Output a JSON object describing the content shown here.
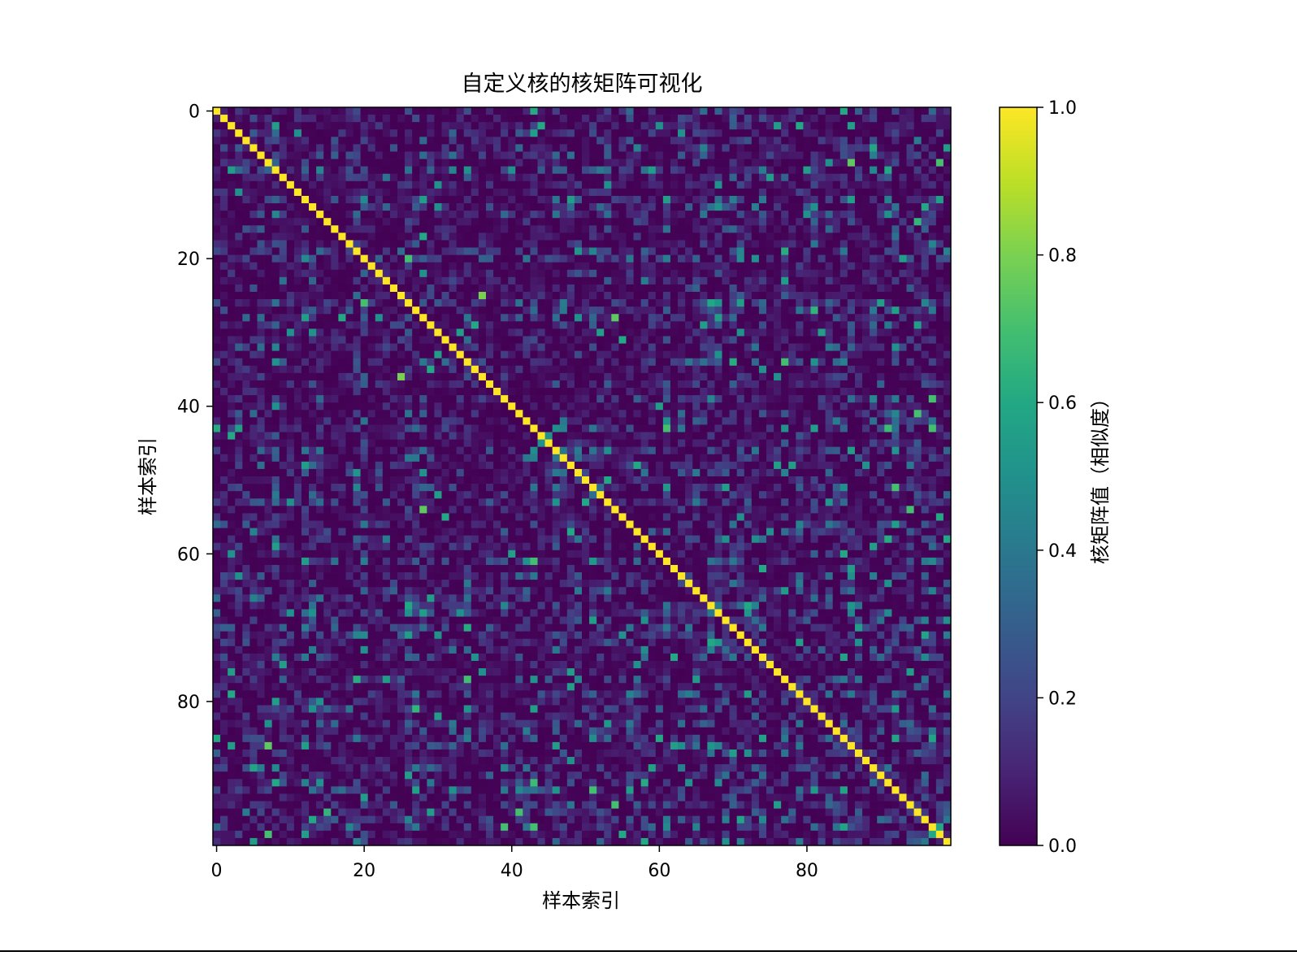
{
  "chart_data": {
    "type": "heatmap",
    "title": "自定义核的核矩阵可视化",
    "xlabel": "样本索引",
    "ylabel": "样本索引",
    "n_samples": 100,
    "x_ticks": [
      0,
      20,
      40,
      60,
      80
    ],
    "y_ticks": [
      0,
      20,
      40,
      60,
      80
    ],
    "x_tick_labels": [
      "0",
      "20",
      "40",
      "60",
      "80"
    ],
    "y_tick_labels": [
      "0",
      "20",
      "40",
      "60",
      "80"
    ],
    "diagonal_value": 1.0,
    "off_diagonal_range": [
      0.0,
      0.8
    ],
    "colormap": "viridis",
    "colorbar": {
      "label": "核矩阵值（相似度）",
      "range": [
        0.0,
        1.0
      ],
      "ticks": [
        0.0,
        0.2,
        0.4,
        0.6,
        0.8,
        1.0
      ],
      "tick_labels": [
        "0.0",
        "0.2",
        "0.4",
        "0.6",
        "0.8",
        "1.0"
      ]
    },
    "bright_pairs": [
      [
        2,
        8,
        0.55
      ],
      [
        2,
        44,
        0.6
      ],
      [
        2,
        76,
        0.55
      ],
      [
        2,
        79,
        0.6
      ],
      [
        3,
        63,
        0.5
      ],
      [
        7,
        86,
        0.75
      ],
      [
        7,
        98,
        0.7
      ],
      [
        8,
        14,
        0.45
      ],
      [
        10,
        30,
        0.5
      ],
      [
        10,
        68,
        0.5
      ],
      [
        12,
        28,
        0.55
      ],
      [
        12,
        61,
        0.55
      ],
      [
        13,
        30,
        0.5
      ],
      [
        14,
        80,
        0.5
      ],
      [
        15,
        95,
        0.65
      ],
      [
        17,
        28,
        0.6
      ],
      [
        20,
        93,
        0.55
      ],
      [
        22,
        28,
        0.5
      ],
      [
        25,
        36,
        0.7
      ],
      [
        27,
        81,
        0.65
      ],
      [
        28,
        49,
        0.5
      ],
      [
        28,
        68,
        0.55
      ],
      [
        29,
        35,
        0.6
      ],
      [
        30,
        71,
        0.5
      ],
      [
        31,
        55,
        0.6
      ],
      [
        33,
        68,
        0.5
      ],
      [
        33,
        30,
        0.55
      ],
      [
        36,
        25,
        0.8
      ],
      [
        39,
        67,
        0.45
      ],
      [
        40,
        8,
        0.5
      ],
      [
        40,
        60,
        0.55
      ],
      [
        41,
        95,
        0.7
      ],
      [
        43,
        3,
        0.55
      ],
      [
        46,
        53,
        0.5
      ],
      [
        46,
        86,
        0.55
      ],
      [
        48,
        76,
        0.55
      ],
      [
        50,
        53,
        0.6
      ],
      [
        52,
        30,
        0.55
      ],
      [
        53,
        10,
        0.5
      ],
      [
        54,
        28,
        0.75
      ],
      [
        54,
        94,
        0.7
      ],
      [
        55,
        98,
        0.6
      ],
      [
        57,
        75,
        0.5
      ],
      [
        58,
        69,
        0.5
      ],
      [
        59,
        8,
        0.55
      ],
      [
        60,
        2,
        0.5
      ],
      [
        62,
        74,
        0.6
      ],
      [
        62,
        86,
        0.55
      ],
      [
        64,
        91,
        0.5
      ],
      [
        66,
        29,
        0.55
      ],
      [
        67,
        72,
        0.6
      ],
      [
        68,
        13,
        0.5
      ],
      [
        69,
        99,
        0.5
      ],
      [
        70,
        87,
        0.55
      ],
      [
        72,
        79,
        0.55
      ],
      [
        74,
        35,
        0.5
      ],
      [
        75,
        9,
        0.55
      ],
      [
        76,
        36,
        0.5
      ],
      [
        78,
        48,
        0.55
      ],
      [
        80,
        8,
        0.55
      ],
      [
        81,
        13,
        0.5
      ],
      [
        82,
        30,
        0.55
      ],
      [
        83,
        7,
        0.5
      ],
      [
        85,
        60,
        0.6
      ],
      [
        86,
        2,
        0.55
      ],
      [
        87,
        72,
        0.5
      ],
      [
        88,
        48,
        0.5
      ],
      [
        90,
        26,
        0.55
      ],
      [
        91,
        8,
        0.6
      ],
      [
        92,
        56,
        0.55
      ],
      [
        94,
        76,
        0.55
      ],
      [
        96,
        13,
        0.6
      ],
      [
        97,
        98,
        0.6
      ],
      [
        98,
        12,
        0.55
      ],
      [
        99,
        58,
        0.6
      ],
      [
        48,
        12,
        0.55
      ],
      [
        48,
        57,
        0.6
      ],
      [
        12,
        86,
        0.55
      ],
      [
        55,
        71,
        0.5
      ],
      [
        29,
        95,
        0.55
      ],
      [
        34,
        8,
        0.5
      ],
      [
        44,
        45,
        0.5
      ],
      [
        11,
        3,
        0.5
      ],
      [
        91,
        14,
        0.5
      ],
      [
        99,
        5,
        0.55
      ]
    ],
    "note_values": "cell value K[i][j], symmetric; diagonal = 1.0; off-diagonal mostly 0.0–0.3 with scattered cells up to ~0.8"
  }
}
